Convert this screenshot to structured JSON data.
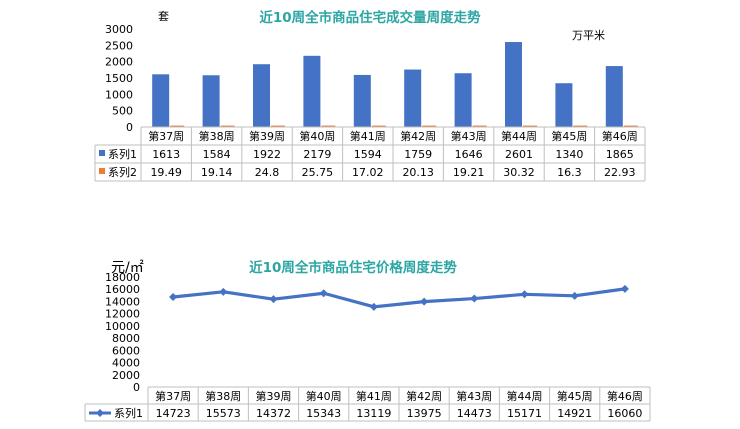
{
  "chart_data": [
    {
      "type": "bar",
      "title": "近10周全市商品住宅成交量周度走势",
      "ylabel_left": "套",
      "ylabel_right": "万平米",
      "categories": [
        "第37周",
        "第38周",
        "第39周",
        "第40周",
        "第41周",
        "第42周",
        "第43周",
        "第44周",
        "第45周",
        "第46周"
      ],
      "series": [
        {
          "name": "系列1",
          "values": [
            1613,
            1584,
            1922,
            2179,
            1594,
            1759,
            1646,
            2601,
            1340,
            1865
          ],
          "color": "#4472C4"
        },
        {
          "name": "系列2",
          "values": [
            19.49,
            19.14,
            24.8,
            25.75,
            17.02,
            20.13,
            19.21,
            30.32,
            16.3,
            22.93
          ],
          "color": "#ED7D31"
        }
      ],
      "series_labels": [
        [
          "1613",
          "1584",
          "1922",
          "2179",
          "1594",
          "1759",
          "1646",
          "2601",
          "1340",
          "1865"
        ],
        [
          "19.49",
          "19.14",
          "24.8",
          "25.75",
          "17.02",
          "20.13",
          "19.21",
          "30.32",
          "16.3",
          "22.93"
        ]
      ],
      "ylim": [
        0,
        3000
      ],
      "yticks": [
        "0",
        "500",
        "1000",
        "1500",
        "2000",
        "2500",
        "3000"
      ],
      "grid": false,
      "legend": "data-table"
    },
    {
      "type": "line",
      "title": "近10周全市商品住宅价格周度走势",
      "ylabel": "元/㎡",
      "categories": [
        "第37周",
        "第38周",
        "第39周",
        "第40周",
        "第41周",
        "第42周",
        "第43周",
        "第44周",
        "第45周",
        "第46周"
      ],
      "series": [
        {
          "name": "系列1",
          "values": [
            14723,
            15573,
            14372,
            15343,
            13119,
            13975,
            14473,
            15171,
            14921,
            16060
          ],
          "color": "#4472C4"
        }
      ],
      "series_labels": [
        [
          "14723",
          "15573",
          "14372",
          "15343",
          "13119",
          "13975",
          "14473",
          "15171",
          "14921",
          "16060"
        ]
      ],
      "ylim": [
        0,
        18000
      ],
      "yticks": [
        "0",
        "2000",
        "4000",
        "6000",
        "8000",
        "10000",
        "12000",
        "14000",
        "16000",
        "18000"
      ],
      "grid": false,
      "legend": "data-table"
    }
  ],
  "colors": {
    "title": "#2CA6A4",
    "bar": "#4472C4",
    "bar2": "#ED7D31",
    "line": "#4472C4",
    "axis": "#595959"
  }
}
